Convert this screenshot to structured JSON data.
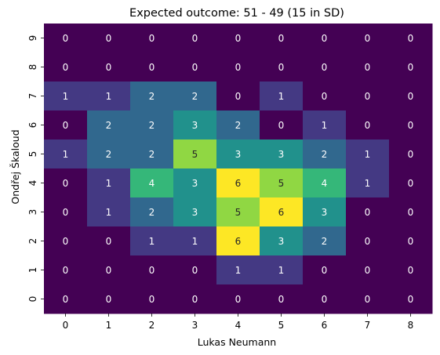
{
  "chart_data": {
    "type": "heatmap",
    "title": "Expected outcome: 51 - 49 (15 in SD)",
    "xlabel": "Lukas Neumann",
    "ylabel": "Ondřej Škaloud",
    "x_categories": [
      "0",
      "1",
      "2",
      "3",
      "4",
      "5",
      "6",
      "7",
      "8"
    ],
    "y_categories": [
      "0",
      "1",
      "2",
      "3",
      "4",
      "5",
      "6",
      "7",
      "8",
      "9"
    ],
    "colormap": "viridis",
    "vmin": 0,
    "vmax": 6,
    "rows": [
      {
        "y": "9",
        "values": [
          0,
          0,
          0,
          0,
          0,
          0,
          0,
          0,
          0
        ]
      },
      {
        "y": "8",
        "values": [
          0,
          0,
          0,
          0,
          0,
          0,
          0,
          0,
          0
        ]
      },
      {
        "y": "7",
        "values": [
          1,
          1,
          2,
          2,
          0,
          1,
          0,
          0,
          0
        ]
      },
      {
        "y": "6",
        "values": [
          0,
          2,
          2,
          3,
          2,
          0,
          1,
          0,
          0
        ]
      },
      {
        "y": "5",
        "values": [
          1,
          2,
          2,
          5,
          3,
          3,
          2,
          1,
          0
        ]
      },
      {
        "y": "4",
        "values": [
          0,
          1,
          4,
          3,
          6,
          5,
          4,
          1,
          0
        ]
      },
      {
        "y": "3",
        "values": [
          0,
          1,
          2,
          3,
          5,
          6,
          3,
          0,
          0
        ]
      },
      {
        "y": "2",
        "values": [
          0,
          0,
          1,
          1,
          6,
          3,
          2,
          0,
          0
        ]
      },
      {
        "y": "1",
        "values": [
          0,
          0,
          0,
          0,
          1,
          1,
          0,
          0,
          0
        ]
      },
      {
        "y": "0",
        "values": [
          0,
          0,
          0,
          0,
          0,
          0,
          0,
          0,
          0
        ]
      }
    ],
    "colors": {
      "0": "#440154",
      "1": "#443983",
      "2": "#31688e",
      "3": "#21918c",
      "4": "#35b779",
      "5": "#90d743",
      "6": "#fde725"
    }
  }
}
